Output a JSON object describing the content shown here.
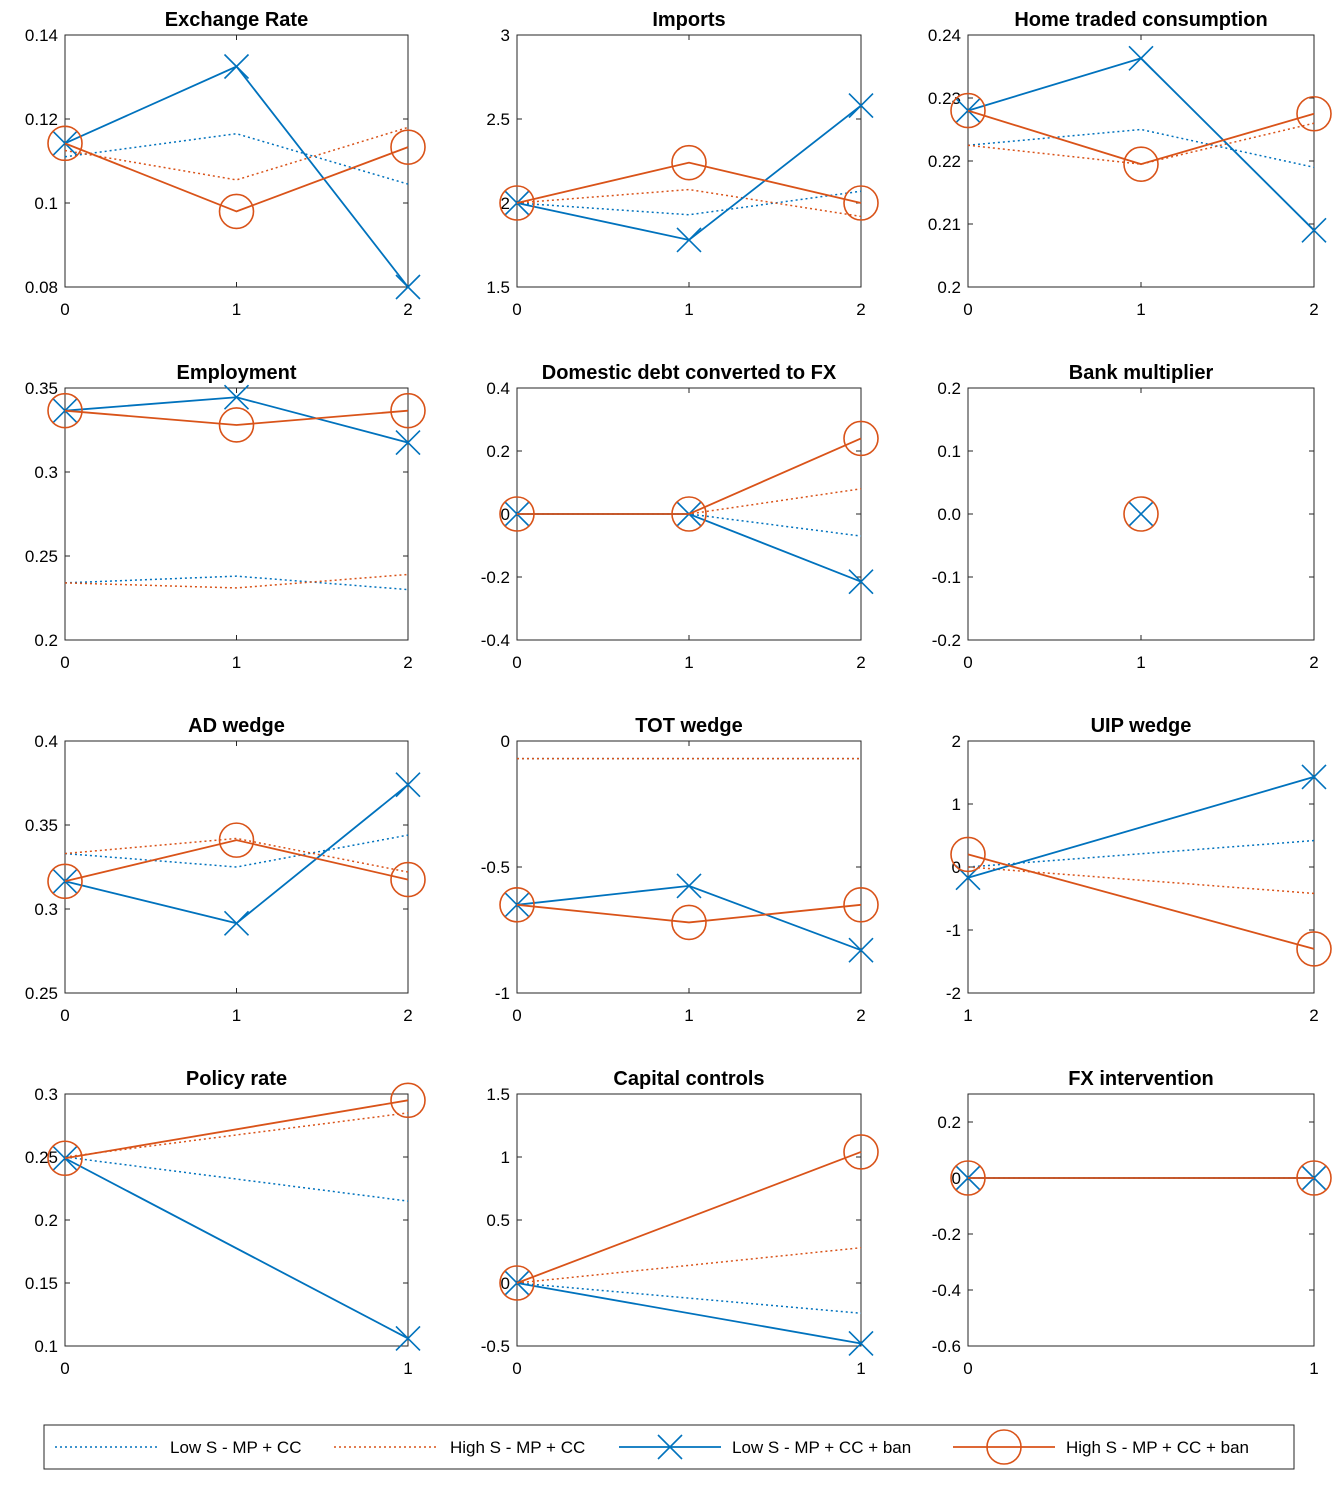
{
  "legend": {
    "location": "bottom",
    "entries": [
      {
        "label": "Low S - MP + CC",
        "color": "#0072BD",
        "style": "dotted",
        "marker": "none"
      },
      {
        "label": "High S - MP + CC",
        "color": "#D95319",
        "style": "dotted",
        "marker": "none"
      },
      {
        "label": "Low S - MP + CC + ban",
        "color": "#0072BD",
        "style": "solid",
        "marker": "x"
      },
      {
        "label": "High S - MP + CC + ban",
        "color": "#D95319",
        "style": "solid",
        "marker": "o"
      }
    ]
  },
  "chart_data": [
    {
      "type": "line",
      "title": "Exchange Rate",
      "x": [
        0,
        1,
        2
      ],
      "xticks": [
        "0",
        "1",
        "2"
      ],
      "ylim": [
        0.08,
        0.14
      ],
      "yticks": [
        "0.08",
        "0.1",
        "0.12",
        "0.14"
      ],
      "series": [
        {
          "name": "Low S - MP + CC",
          "values": [
            0.111,
            0.1165,
            0.1045
          ]
        },
        {
          "name": "High S - MP + CC",
          "values": [
            0.1125,
            0.1055,
            0.118
          ]
        },
        {
          "name": "Low S - MP + CC + ban",
          "values": [
            0.1142,
            0.1325,
            0.08
          ]
        },
        {
          "name": "High S - MP + CC + ban",
          "values": [
            0.1142,
            0.098,
            0.1133
          ]
        }
      ]
    },
    {
      "type": "line",
      "title": "Imports",
      "x": [
        0,
        1,
        2
      ],
      "xticks": [
        "0",
        "1",
        "2"
      ],
      "ylim": [
        1.5,
        3
      ],
      "yticks": [
        "1.5",
        "2",
        "2.5",
        "3"
      ],
      "series": [
        {
          "name": "Low S - MP + CC",
          "values": [
            2.0,
            1.93,
            2.07
          ]
        },
        {
          "name": "High S - MP + CC",
          "values": [
            2.0,
            2.08,
            1.92
          ]
        },
        {
          "name": "Low S - MP + CC + ban",
          "values": [
            2.0,
            1.78,
            2.58
          ]
        },
        {
          "name": "High S - MP + CC + ban",
          "values": [
            2.0,
            2.24,
            2.0
          ]
        }
      ]
    },
    {
      "type": "line",
      "title": "Home traded consumption",
      "x": [
        0,
        1,
        2
      ],
      "xticks": [
        "0",
        "1",
        "2"
      ],
      "ylim": [
        0.2,
        0.24
      ],
      "yticks": [
        "0.2",
        "0.21",
        "0.22",
        "0.23",
        "0.24"
      ],
      "series": [
        {
          "name": "Low S - MP + CC",
          "values": [
            0.2225,
            0.225,
            0.219
          ]
        },
        {
          "name": "High S - MP + CC",
          "values": [
            0.2225,
            0.2195,
            0.226
          ]
        },
        {
          "name": "Low S - MP + CC + ban",
          "values": [
            0.228,
            0.2363,
            0.209
          ]
        },
        {
          "name": "High S - MP + CC + ban",
          "values": [
            0.228,
            0.2195,
            0.2275
          ]
        }
      ]
    },
    {
      "type": "line",
      "title": "Employment",
      "x": [
        0,
        1,
        2
      ],
      "xticks": [
        "0",
        "1",
        "2"
      ],
      "ylim": [
        0.2,
        0.35
      ],
      "yticks": [
        "0.2",
        "0.25",
        "0.3",
        "0.35"
      ],
      "series": [
        {
          "name": "Low S - MP + CC",
          "values": [
            0.234,
            0.238,
            0.23
          ]
        },
        {
          "name": "High S - MP + CC",
          "values": [
            0.234,
            0.231,
            0.239
          ]
        },
        {
          "name": "Low S - MP + CC + ban",
          "values": [
            0.3365,
            0.3445,
            0.3175
          ]
        },
        {
          "name": "High S - MP + CC + ban",
          "values": [
            0.3365,
            0.328,
            0.3365
          ]
        }
      ]
    },
    {
      "type": "line",
      "title": "Domestic debt converted to FX",
      "x": [
        0,
        1,
        2
      ],
      "xticks": [
        "0",
        "1",
        "2"
      ],
      "ylim": [
        -0.4,
        0.4
      ],
      "yticks": [
        "-0.4",
        "-0.2",
        "0",
        "0.2",
        "0.4"
      ],
      "series": [
        {
          "name": "Low S - MP + CC",
          "values": [
            0,
            0,
            -0.07
          ]
        },
        {
          "name": "High S - MP + CC",
          "values": [
            0,
            0,
            0.08
          ]
        },
        {
          "name": "Low S - MP + CC + ban",
          "values": [
            0,
            0,
            -0.215
          ]
        },
        {
          "name": "High S - MP + CC + ban",
          "values": [
            0,
            0,
            0.24
          ]
        }
      ]
    },
    {
      "type": "line",
      "title": "Bank multiplier",
      "x": [
        1
      ],
      "xlim": [
        0,
        2
      ],
      "xticks": [
        "0",
        "1",
        "2"
      ],
      "ylim": [
        -0.2,
        0.2
      ],
      "yticks": [
        "-0.2",
        "-0.1",
        "0.0",
        "0.1",
        "0.2"
      ],
      "series": [
        {
          "name": "Low S - MP + CC",
          "values": [
            0
          ]
        },
        {
          "name": "High S - MP + CC",
          "values": [
            0
          ]
        },
        {
          "name": "Low S - MP + CC + ban",
          "values": [
            0
          ]
        },
        {
          "name": "High S - MP + CC + ban",
          "values": [
            0
          ]
        }
      ]
    },
    {
      "type": "line",
      "title": "AD wedge",
      "x": [
        0,
        1,
        2
      ],
      "xticks": [
        "0",
        "1",
        "2"
      ],
      "ylim": [
        0.25,
        0.4
      ],
      "yticks": [
        "0.25",
        "0.3",
        "0.35",
        "0.4"
      ],
      "series": [
        {
          "name": "Low S - MP + CC",
          "values": [
            0.333,
            0.325,
            0.344
          ]
        },
        {
          "name": "High S - MP + CC",
          "values": [
            0.333,
            0.342,
            0.322
          ]
        },
        {
          "name": "Low S - MP + CC + ban",
          "values": [
            0.3165,
            0.2915,
            0.374
          ]
        },
        {
          "name": "High S - MP + CC + ban",
          "values": [
            0.3165,
            0.341,
            0.3175
          ]
        }
      ]
    },
    {
      "type": "line",
      "title": "TOT wedge",
      "x": [
        0,
        1,
        2
      ],
      "xticks": [
        "0",
        "1",
        "2"
      ],
      "ylim": [
        -1,
        0
      ],
      "yticks": [
        "-1",
        "-0.5",
        "0"
      ],
      "series": [
        {
          "name": "Low S - MP + CC",
          "values": [
            -0.07,
            -0.07,
            -0.07
          ]
        },
        {
          "name": "High S - MP + CC",
          "values": [
            -0.07,
            -0.07,
            -0.07
          ]
        },
        {
          "name": "Low S - MP + CC + ban",
          "values": [
            -0.65,
            -0.575,
            -0.83
          ]
        },
        {
          "name": "High S - MP + CC + ban",
          "values": [
            -0.65,
            -0.72,
            -0.65
          ]
        }
      ]
    },
    {
      "type": "line",
      "title": "UIP wedge",
      "x": [
        1,
        2
      ],
      "xticks": [
        "1",
        "2"
      ],
      "ylim": [
        -2,
        2
      ],
      "yticks": [
        "-2",
        "-1",
        "0",
        "1",
        "2"
      ],
      "series": [
        {
          "name": "Low S - MP + CC",
          "values": [
            0.0,
            0.42
          ]
        },
        {
          "name": "High S - MP + CC",
          "values": [
            0.0,
            -0.42
          ]
        },
        {
          "name": "Low S - MP + CC + ban",
          "values": [
            -0.17,
            1.43
          ]
        },
        {
          "name": "High S - MP + CC + ban",
          "values": [
            0.2,
            -1.3
          ]
        }
      ]
    },
    {
      "type": "line",
      "title": "Policy rate",
      "x": [
        0,
        1
      ],
      "xticks": [
        "0",
        "1"
      ],
      "ylim": [
        0.1,
        0.3
      ],
      "yticks": [
        "0.1",
        "0.15",
        "0.2",
        "0.25",
        "0.3"
      ],
      "series": [
        {
          "name": "Low S - MP + CC",
          "values": [
            0.25,
            0.215
          ]
        },
        {
          "name": "High S - MP + CC",
          "values": [
            0.25,
            0.285
          ]
        },
        {
          "name": "Low S - MP + CC + ban",
          "values": [
            0.249,
            0.106
          ]
        },
        {
          "name": "High S - MP + CC + ban",
          "values": [
            0.249,
            0.295
          ]
        }
      ]
    },
    {
      "type": "line",
      "title": "Capital controls",
      "x": [
        0,
        1
      ],
      "xticks": [
        "0",
        "1"
      ],
      "ylim": [
        -0.5,
        1.5
      ],
      "yticks": [
        "-0.5",
        "0",
        "0.5",
        "1",
        "1.5"
      ],
      "series": [
        {
          "name": "Low S - MP + CC",
          "values": [
            0,
            -0.24
          ]
        },
        {
          "name": "High S - MP + CC",
          "values": [
            0,
            0.28
          ]
        },
        {
          "name": "Low S - MP + CC + ban",
          "values": [
            0,
            -0.48
          ]
        },
        {
          "name": "High S - MP + CC + ban",
          "values": [
            0,
            1.04
          ]
        }
      ]
    },
    {
      "type": "line",
      "title": "FX intervention",
      "x": [
        0,
        1
      ],
      "xticks": [
        "0",
        "1"
      ],
      "ylim": [
        -0.6,
        0.3
      ],
      "yticks": [
        "-0.6",
        "-0.4",
        "-0.2",
        "0",
        "0.2"
      ],
      "series": [
        {
          "name": "Low S - MP + CC",
          "values": [
            0,
            0
          ]
        },
        {
          "name": "High S - MP + CC",
          "values": [
            0,
            0
          ]
        },
        {
          "name": "Low S - MP + CC + ban",
          "values": [
            0,
            0
          ]
        },
        {
          "name": "High S - MP + CC + ban",
          "values": [
            0,
            0
          ]
        }
      ]
    }
  ]
}
